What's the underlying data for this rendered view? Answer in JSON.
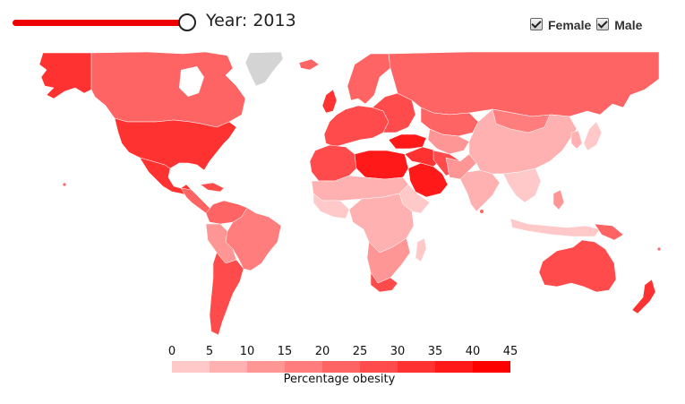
{
  "controls": {
    "year_label": "Year:",
    "year_value": "2013",
    "year_slider_position": 1.0,
    "sex_options": [
      {
        "label": "Female",
        "checked": true
      },
      {
        "label": "Male",
        "checked": true
      }
    ]
  },
  "legend": {
    "title": "Percentage obesity",
    "ticks": [
      "0",
      "5",
      "10",
      "15",
      "20",
      "25",
      "30",
      "35",
      "40",
      "45"
    ],
    "colors": [
      "#ffc9c9",
      "#ffb0b0",
      "#ff9696",
      "#ff7d7d",
      "#ff6464",
      "#ff4b4b",
      "#ff3232",
      "#ff1919",
      "#ff0000"
    ]
  },
  "map_colors": {
    "no_data": "#d4d4d4",
    "ocean": "#ffffff"
  }
}
